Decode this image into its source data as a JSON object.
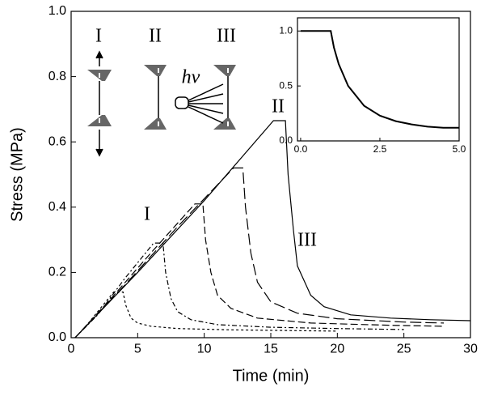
{
  "chart_data": [
    {
      "type": "line",
      "xlabel": "Time (min)",
      "ylabel": "Stress (MPa)",
      "xlim": [
        0,
        30
      ],
      "ylim": [
        0,
        1.0
      ],
      "xticks": [
        0,
        5,
        10,
        15,
        20,
        25,
        30
      ],
      "yticks": [
        {
          "value": 0,
          "label": "0.0"
        },
        0.2,
        0.4,
        0.6,
        0.8,
        {
          "value": 1.0,
          "label": "1.0"
        }
      ],
      "annotations": [
        "I",
        "II",
        "III",
        "hν",
        "I",
        "II",
        "III"
      ],
      "series": [
        {
          "color": "#000000",
          "dash": "short-dash",
          "x": [
            0.3,
            1,
            2,
            3.2,
            3.9,
            4.1,
            4.5,
            5,
            6,
            8,
            12,
            16,
            20
          ],
          "values": [
            0,
            0.03,
            0.08,
            0.14,
            0.14,
            0.1,
            0.06,
            0.045,
            0.035,
            0.028,
            0.024,
            0.022,
            0.02
          ]
        },
        {
          "color": "#000000",
          "dash": "dash-dot",
          "x": [
            0.3,
            2,
            4,
            6.2,
            6.9,
            7.1,
            7.5,
            8,
            9,
            11,
            15,
            20,
            25
          ],
          "values": [
            0,
            0.07,
            0.18,
            0.29,
            0.29,
            0.2,
            0.12,
            0.08,
            0.055,
            0.04,
            0.032,
            0.028,
            0.025
          ]
        },
        {
          "color": "#000000",
          "dash": "medium-dash",
          "x": [
            0.3,
            3,
            6,
            9.3,
            9.9,
            10.1,
            10.5,
            11,
            12,
            14,
            18,
            24,
            28
          ],
          "values": [
            0,
            0.12,
            0.26,
            0.41,
            0.41,
            0.3,
            0.2,
            0.13,
            0.09,
            0.06,
            0.045,
            0.038,
            0.035
          ]
        },
        {
          "color": "#000000",
          "dash": "long-dash",
          "x": [
            0.3,
            4,
            8,
            12.2,
            12.9,
            13.1,
            13.5,
            14,
            15,
            17,
            20,
            25,
            28
          ],
          "values": [
            0,
            0.16,
            0.34,
            0.52,
            0.52,
            0.4,
            0.26,
            0.17,
            0.11,
            0.075,
            0.058,
            0.048,
            0.045
          ]
        },
        {
          "color": "#000000",
          "dash": "solid",
          "x": [
            0.3,
            5,
            10,
            15.2,
            16.1,
            16.3,
            16.7,
            17,
            18,
            19,
            21,
            24,
            27,
            30
          ],
          "values": [
            0,
            0.2,
            0.42,
            0.665,
            0.665,
            0.5,
            0.33,
            0.22,
            0.13,
            0.095,
            0.07,
            0.06,
            0.055,
            0.052
          ]
        }
      ]
    },
    {
      "type": "line",
      "xlim": [
        -0.1,
        5.0
      ],
      "ylim": [
        0,
        1.12
      ],
      "xticks": [
        {
          "value": 0,
          "label": "0.0"
        },
        2.5,
        {
          "value": 5.0,
          "label": "5.0"
        }
      ],
      "yticks": [
        {
          "value": 0,
          "label": "0.0"
        },
        0.5,
        {
          "value": 1.0,
          "label": "1.0"
        }
      ],
      "series": [
        {
          "color": "#000000",
          "dash": "solid",
          "x": [
            0,
            0.95,
            1.05,
            1.2,
            1.5,
            2,
            2.5,
            3,
            3.5,
            4,
            4.5,
            5
          ],
          "values": [
            1,
            1,
            0.85,
            0.7,
            0.5,
            0.32,
            0.23,
            0.18,
            0.15,
            0.13,
            0.12,
            0.12
          ]
        }
      ]
    }
  ]
}
